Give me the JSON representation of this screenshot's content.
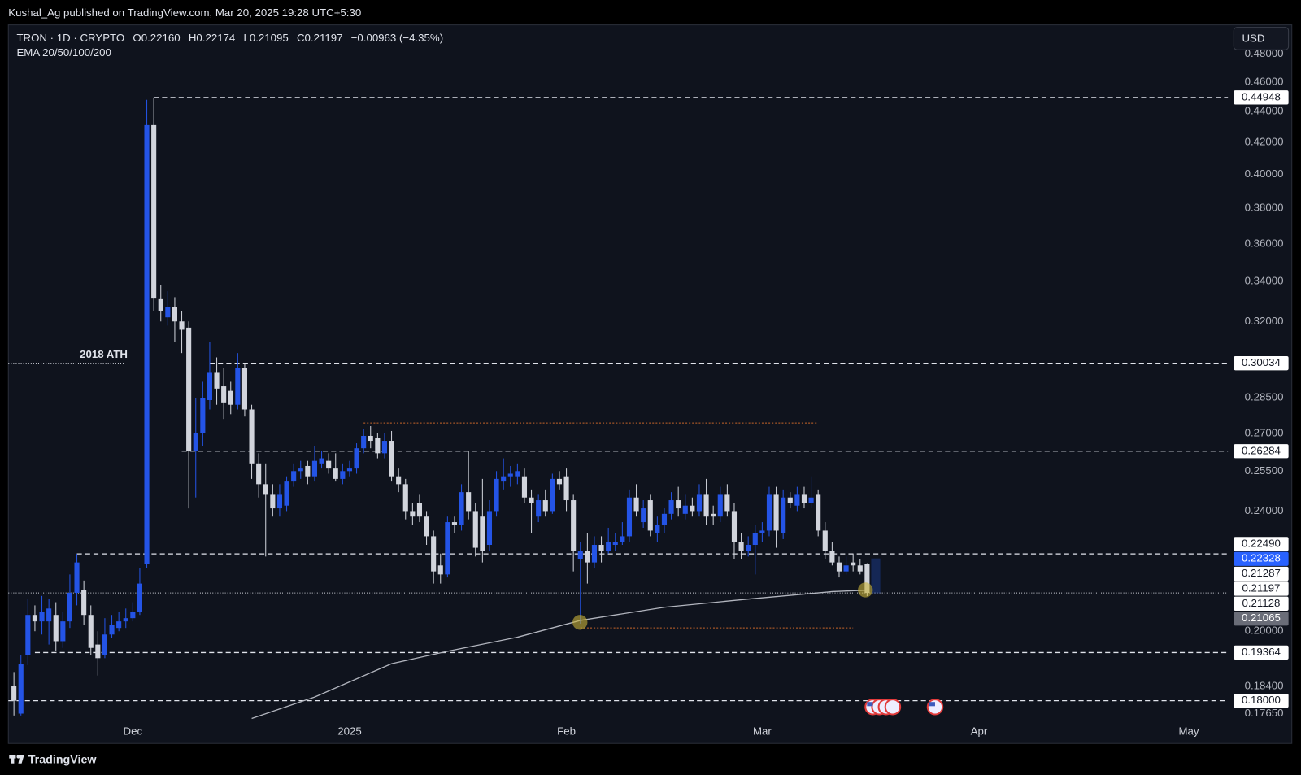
{
  "published": "Kushal_Ag published on TradingView.com, Mar 20, 2025 19:28 UTC+5:30",
  "brand": "TradingView",
  "currency": "USD",
  "chart_data": {
    "type": "candlestick",
    "title": "TRON · 1D · CRYPTO",
    "ohlc_text": [
      "O0.22160",
      "H0.22174",
      "L0.21095",
      "C0.21197",
      "−0.00963 (−4.35%)"
    ],
    "indicator": "EMA 20/50/100/200",
    "up_color": "#2454e6",
    "down_color": "#d1d4dc",
    "x": [
      -17,
      -16,
      -15,
      -14,
      -13,
      -12,
      -11,
      -10,
      -9,
      -8,
      -7,
      -6,
      -5,
      -4,
      -3,
      -2,
      -1,
      0,
      1,
      2,
      3,
      4,
      5,
      6,
      7,
      8,
      9,
      10,
      11,
      12,
      13,
      14,
      15,
      16,
      17,
      18,
      19,
      20,
      21,
      22,
      23,
      24,
      25,
      26,
      27,
      28,
      29,
      30,
      31,
      32,
      33,
      34,
      35,
      36,
      37,
      38,
      39,
      40,
      41,
      42,
      43,
      44,
      45,
      46,
      47,
      48,
      49,
      50,
      51,
      52,
      53,
      54,
      55,
      56,
      57,
      58,
      59,
      60,
      61,
      62,
      63,
      64,
      65,
      66,
      67,
      68,
      69,
      70,
      71,
      72,
      73,
      74,
      75,
      76,
      77,
      78,
      79,
      80,
      81,
      82,
      83,
      84,
      85,
      86,
      87,
      88,
      89,
      90,
      91,
      92,
      93,
      94,
      95,
      96,
      97,
      98,
      99,
      100,
      101,
      102,
      103,
      104,
      105
    ],
    "open": [
      0.184,
      0.1765,
      0.193,
      0.205,
      0.203,
      0.203,
      0.205,
      0.197,
      0.203,
      0.212,
      0.213,
      0.205,
      0.196,
      0.193,
      0.199,
      0.201,
      0.203,
      0.204,
      0.206,
      0.2214,
      0.431,
      0.331,
      0.322,
      0.327,
      0.32,
      0.317,
      0.263,
      0.27,
      0.284,
      0.296,
      0.29,
      0.288,
      0.282,
      0.298,
      0.28,
      0.258,
      0.25,
      0.246,
      0.241,
      0.242,
      0.251,
      0.255,
      0.257,
      0.253,
      0.258,
      0.259,
      0.256,
      0.252,
      0.255,
      0.256,
      0.264,
      0.269,
      0.268,
      0.262,
      0.267,
      0.253,
      0.25,
      0.24,
      0.243,
      0.238,
      0.231,
      0.221,
      0.218,
      0.236,
      0.235,
      0.247,
      0.24,
      0.238,
      0.228,
      0.24,
      0.251,
      0.253,
      0.253,
      0.253,
      0.245,
      0.238,
      0.244,
      0.24,
      0.252,
      0.253,
      0.244,
      0.223,
      0.226,
      0.222,
      0.228,
      0.226,
      0.228,
      0.229,
      0.231,
      0.245,
      0.236,
      0.244,
      0.232,
      0.235,
      0.239,
      0.244,
      0.239,
      0.242,
      0.24,
      0.246,
      0.239,
      0.238,
      0.246,
      0.24,
      0.229,
      0.226,
      0.228,
      0.232,
      0.233,
      0.246,
      0.232,
      0.245,
      0.242,
      0.246,
      0.243,
      0.246,
      0.233,
      0.226,
      0.222,
      0.219,
      0.222,
      0.221,
      0.2216
    ],
    "high": [
      0.188,
      0.193,
      0.21,
      0.208,
      0.211,
      0.21,
      0.209,
      0.206,
      0.218,
      0.2249,
      0.216,
      0.208,
      0.2,
      0.204,
      0.205,
      0.206,
      0.207,
      0.209,
      0.22,
      0.4479,
      0.4495,
      0.338,
      0.335,
      0.332,
      0.325,
      0.32,
      0.285,
      0.292,
      0.31,
      0.303,
      0.298,
      0.292,
      0.305,
      0.3,
      0.282,
      0.262,
      0.258,
      0.25,
      0.25,
      0.253,
      0.258,
      0.259,
      0.259,
      0.265,
      0.263,
      0.262,
      0.262,
      0.258,
      0.259,
      0.266,
      0.272,
      0.273,
      0.27,
      0.27,
      0.271,
      0.256,
      0.252,
      0.243,
      0.246,
      0.24,
      0.233,
      0.225,
      0.238,
      0.238,
      0.25,
      0.263,
      0.243,
      0.252,
      0.244,
      0.255,
      0.26,
      0.257,
      0.258,
      0.256,
      0.248,
      0.246,
      0.248,
      0.254,
      0.255,
      0.256,
      0.246,
      0.229,
      0.232,
      0.231,
      0.231,
      0.234,
      0.232,
      0.236,
      0.248,
      0.25,
      0.244,
      0.246,
      0.238,
      0.241,
      0.247,
      0.249,
      0.246,
      0.245,
      0.25,
      0.252,
      0.242,
      0.249,
      0.25,
      0.243,
      0.232,
      0.231,
      0.235,
      0.236,
      0.249,
      0.249,
      0.248,
      0.247,
      0.249,
      0.249,
      0.253,
      0.248,
      0.236,
      0.229,
      0.224,
      0.224,
      0.2249,
      0.223,
      0.22174
    ],
    "low": [
      0.176,
      0.176,
      0.19,
      0.2,
      0.199,
      0.196,
      0.194,
      0.195,
      0.201,
      0.208,
      0.202,
      0.193,
      0.187,
      0.192,
      0.198,
      0.2,
      0.201,
      0.203,
      0.205,
      0.22,
      0.325,
      0.32,
      0.318,
      0.31,
      0.305,
      0.241,
      0.245,
      0.265,
      0.28,
      0.282,
      0.276,
      0.278,
      0.28,
      0.277,
      0.252,
      0.245,
      0.224,
      0.238,
      0.238,
      0.24,
      0.249,
      0.252,
      0.25,
      0.251,
      0.256,
      0.254,
      0.251,
      0.25,
      0.253,
      0.254,
      0.262,
      0.264,
      0.26,
      0.26,
      0.251,
      0.247,
      0.237,
      0.235,
      0.236,
      0.228,
      0.215,
      0.215,
      0.217,
      0.232,
      0.233,
      0.237,
      0.224,
      0.222,
      0.226,
      0.238,
      0.248,
      0.249,
      0.25,
      0.243,
      0.232,
      0.236,
      0.238,
      0.239,
      0.248,
      0.24,
      0.219,
      0.2023,
      0.215,
      0.22,
      0.222,
      0.225,
      0.226,
      0.228,
      0.229,
      0.238,
      0.234,
      0.231,
      0.229,
      0.232,
      0.237,
      0.238,
      0.237,
      0.238,
      0.238,
      0.235,
      0.235,
      0.236,
      0.238,
      0.223,
      0.223,
      0.224,
      0.218,
      0.229,
      0.231,
      0.227,
      0.23,
      0.241,
      0.24,
      0.241,
      0.241,
      0.231,
      0.223,
      0.221,
      0.217,
      0.218,
      0.219,
      0.218,
      0.21095
    ],
    "close": [
      0.18,
      0.1904,
      0.205,
      0.203,
      0.206,
      0.207,
      0.197,
      0.203,
      0.212,
      0.222,
      0.205,
      0.195,
      0.192,
      0.199,
      0.202,
      0.203,
      0.204,
      0.206,
      0.215,
      0.431,
      0.3313,
      0.325,
      0.327,
      0.32,
      0.316,
      0.263,
      0.27,
      0.285,
      0.296,
      0.289,
      0.283,
      0.282,
      0.298,
      0.28,
      0.258,
      0.25,
      0.246,
      0.241,
      0.246,
      0.251,
      0.255,
      0.256,
      0.253,
      0.259,
      0.26,
      0.256,
      0.252,
      0.255,
      0.256,
      0.264,
      0.269,
      0.267,
      0.262,
      0.267,
      0.253,
      0.25,
      0.24,
      0.238,
      0.238,
      0.231,
      0.219,
      0.218,
      0.236,
      0.235,
      0.247,
      0.24,
      0.227,
      0.226,
      0.24,
      0.252,
      0.253,
      0.254,
      0.255,
      0.245,
      0.243,
      0.244,
      0.24,
      0.252,
      0.25,
      0.244,
      0.226,
      0.226,
      0.222,
      0.228,
      0.226,
      0.229,
      0.229,
      0.231,
      0.245,
      0.24,
      0.241,
      0.233,
      0.235,
      0.239,
      0.244,
      0.241,
      0.242,
      0.24,
      0.246,
      0.238,
      0.238,
      0.246,
      0.24,
      0.229,
      0.226,
      0.228,
      0.232,
      0.233,
      0.246,
      0.233,
      0.245,
      0.243,
      0.246,
      0.243,
      0.245,
      0.233,
      0.226,
      0.222,
      0.219,
      0.221,
      0.221,
      0.219,
      0.21197
    ],
    "ema": {
      "color": "#b2b5be",
      "x": [
        17,
        26,
        37,
        45,
        55,
        64,
        76,
        88,
        100,
        105
      ],
      "values": [
        0.1752,
        0.181,
        0.1904,
        0.194,
        0.1982,
        0.2033,
        0.2074,
        0.21,
        0.2124,
        0.21287
      ]
    },
    "xlim": [
      -17.8,
      156.6
    ],
    "xticks": [
      {
        "value": 0,
        "label": "Dec"
      },
      {
        "value": 31,
        "label": "2025"
      },
      {
        "value": 62,
        "label": "Feb"
      },
      {
        "value": 90,
        "label": "Mar"
      },
      {
        "value": 121,
        "label": "Apr"
      },
      {
        "value": 151,
        "label": "May"
      }
    ],
    "ylim": [
      0.1689,
      0.5018
    ],
    "log_scale": true,
    "grid": false,
    "yticks": [
      {
        "value": 0.48,
        "label": "0.48000"
      },
      {
        "value": 0.46,
        "label": "0.46000"
      },
      {
        "value": 0.44,
        "label": "0.44000"
      },
      {
        "value": 0.42,
        "label": "0.42000"
      },
      {
        "value": 0.4,
        "label": "0.40000"
      },
      {
        "value": 0.38,
        "label": "0.38000"
      },
      {
        "value": 0.36,
        "label": "0.36000"
      },
      {
        "value": 0.34,
        "label": "0.34000"
      },
      {
        "value": 0.32,
        "label": "0.32000"
      },
      {
        "value": 0.285,
        "label": "0.28500"
      },
      {
        "value": 0.27,
        "label": "0.27000"
      },
      {
        "value": 0.255,
        "label": "0.25500"
      },
      {
        "value": 0.24,
        "label": "0.24000"
      },
      {
        "value": 0.2,
        "label": "0.20000"
      },
      {
        "value": 0.184,
        "label": "0.18400"
      },
      {
        "value": 0.1765,
        "label": "0.17650"
      }
    ],
    "levels": [
      {
        "value": 0.44948,
        "label": "0.44948",
        "x_start": 3
      },
      {
        "value": 0.30034,
        "label": "0.30034",
        "x_start": 11
      },
      {
        "value": 0.26284,
        "label": "0.26284",
        "x_start": 7
      },
      {
        "value": 0.2249,
        "label": "0.22490",
        "x_start": -8
      },
      {
        "value": 0.19364,
        "label": "0.19364",
        "x_start": -14
      },
      {
        "value": 0.18,
        "label": "0.18000",
        "x_start": -17.8
      }
    ],
    "zones": {
      "color": "#c8662a",
      "items": [
        {
          "value": 0.2743,
          "x": [
            33,
            98
          ]
        },
        {
          "value": 0.201,
          "x": [
            64,
            103
          ]
        }
      ]
    },
    "annotation": {
      "text": "2018 ATH",
      "value": 0.30034,
      "x": [
        -17.8,
        -1.2
      ]
    },
    "price_labels": [
      {
        "value": 0.22328,
        "label": "0.22328",
        "style": "blue"
      },
      {
        "value": 0.21287,
        "label": "0.21287",
        "style": "light"
      },
      {
        "value": 0.21197,
        "label": "0.21197",
        "style": "light",
        "line": true
      },
      {
        "value": 0.21128,
        "label": "0.21128",
        "style": "light"
      },
      {
        "value": 0.21065,
        "label": "0.21065",
        "style": "gray"
      }
    ]
  }
}
